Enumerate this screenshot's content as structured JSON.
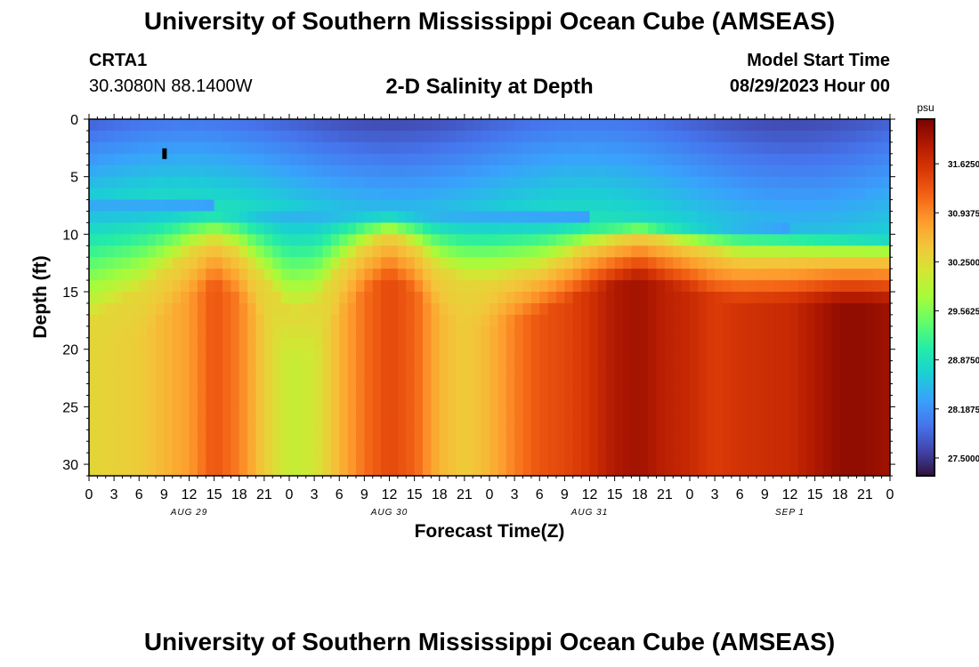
{
  "header": {
    "title": "University of Southern Mississippi Ocean Cube (AMSEAS)",
    "station_id": "CRTA1",
    "coordinates": "30.3080N  88.1400W",
    "plot_title": "2-D Salinity at Depth",
    "model_start_label": "Model Start Time",
    "model_start_value": "08/29/2023 Hour 00"
  },
  "footer": {
    "title": "University of Southern Mississippi Ocean Cube (AMSEAS)"
  },
  "chart_data": {
    "type": "heatmap",
    "title": "2-D Salinity at Depth",
    "xlabel": "Forecast Time(Z)",
    "ylabel": "Depth (ft)",
    "x_range_hours": [
      0,
      96
    ],
    "ylim": [
      0,
      31
    ],
    "y_inverted": true,
    "x_tick_hours": [
      0,
      3,
      6,
      9,
      12,
      15,
      18,
      21,
      24,
      27,
      30,
      33,
      36,
      39,
      42,
      45,
      48,
      51,
      54,
      57,
      60,
      63,
      66,
      69,
      72,
      75,
      78,
      81,
      84,
      87,
      90,
      93,
      96
    ],
    "x_tick_labels": [
      "0",
      "3",
      "6",
      "9",
      "12",
      "15",
      "18",
      "21",
      "0",
      "3",
      "6",
      "9",
      "12",
      "15",
      "18",
      "21",
      "0",
      "3",
      "6",
      "9",
      "12",
      "15",
      "18",
      "21",
      "0",
      "3",
      "6",
      "9",
      "12",
      "15",
      "18",
      "21",
      "0"
    ],
    "y_tick_values": [
      0,
      5,
      10,
      15,
      20,
      25,
      30
    ],
    "y_tick_labels": [
      "0",
      "5",
      "10",
      "15",
      "20",
      "25",
      "30"
    ],
    "day_labels": [
      {
        "hour": 12,
        "label": "AUG 29"
      },
      {
        "hour": 36,
        "label": "AUG 30"
      },
      {
        "hour": 60,
        "label": "AUG 31"
      },
      {
        "hour": 84,
        "label": "SEP 1"
      }
    ],
    "colorbar": {
      "unit": "psu",
      "min": 27.25,
      "max": 32.25,
      "tick_values": [
        27.5,
        28.1875,
        28.875,
        29.5625,
        30.25,
        30.9375,
        31.625
      ],
      "tick_labels": [
        "27.5000",
        "28.1875",
        "28.8750",
        "29.5625",
        "30.2500",
        "30.9375",
        "31.6250"
      ],
      "colors": [
        "#30123b",
        "#4145ab",
        "#4675ed",
        "#39a2fc",
        "#1bcfd4",
        "#24eca6",
        "#61fc6c",
        "#a4fc3b",
        "#d1e834",
        "#f3c63a",
        "#fe9b2d",
        "#f36315",
        "#d93806",
        "#b11901",
        "#7a0402"
      ]
    },
    "surface_layer": {
      "description": "low salinity layer near surface",
      "min_psu": 27.6,
      "max_psu": 28.5,
      "thickness_ft": [
        7,
        7.5,
        8.5,
        10
      ],
      "thickness_hours": [
        0,
        15,
        60,
        96
      ]
    },
    "halocline_depth_ft": {
      "hours": [
        0,
        6,
        12,
        15,
        18,
        21,
        24,
        27,
        30,
        33,
        36,
        39,
        42,
        45,
        48,
        54,
        60,
        66,
        69,
        72,
        75,
        78,
        84,
        90,
        96
      ],
      "values": [
        17.5,
        15,
        11.5,
        10.5,
        11.5,
        14,
        17,
        16.5,
        13,
        11,
        10,
        11,
        13,
        14,
        14,
        13,
        11,
        10,
        10.5,
        11,
        11.5,
        12,
        12,
        12,
        12
      ]
    },
    "deep_salinity_psu": {
      "hours": [
        0,
        6,
        12,
        15,
        18,
        21,
        24,
        27,
        30,
        33,
        36,
        39,
        42,
        45,
        48,
        51,
        54,
        57,
        60,
        63,
        66,
        69,
        72,
        75,
        78,
        84,
        87,
        90,
        93,
        96
      ],
      "values": [
        30.3,
        30.4,
        30.8,
        31.3,
        31.0,
        30.4,
        30.0,
        30.1,
        30.6,
        31.1,
        31.4,
        31.2,
        30.6,
        30.4,
        30.6,
        31.0,
        31.3,
        31.4,
        31.6,
        31.9,
        32.0,
        31.8,
        31.7,
        31.5,
        31.6,
        31.7,
        31.9,
        32.1,
        32.1,
        32.0
      ]
    },
    "marker": {
      "hour": 9,
      "depth_ft": 3
    }
  }
}
